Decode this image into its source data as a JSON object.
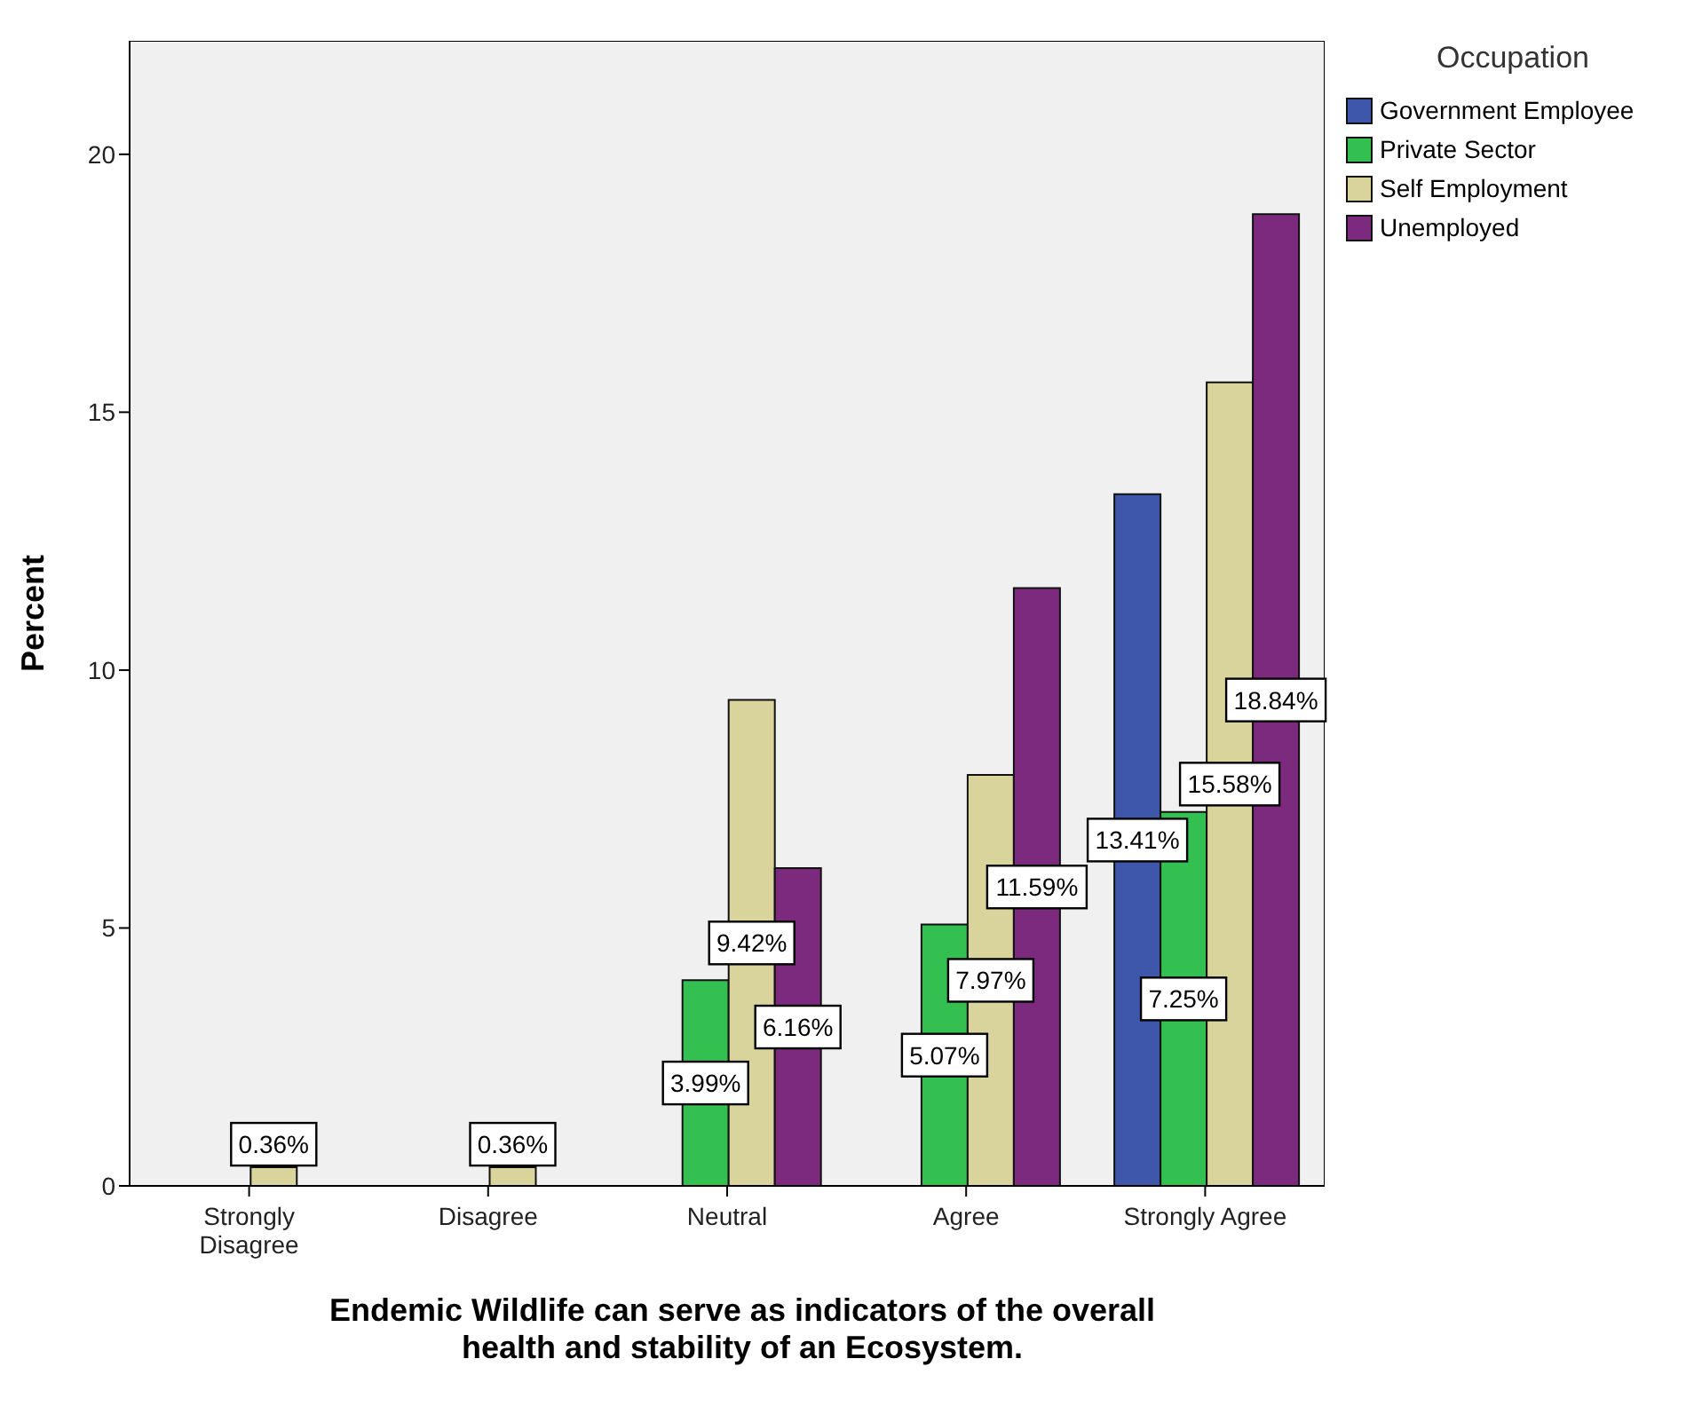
{
  "chart_data": {
    "type": "bar",
    "xlabel": "Endemic Wildlife can serve as indicators of the overall health and stability of an Ecosystem.",
    "ylabel": "Percent",
    "legend_title": "Occupation",
    "categories": [
      "Strongly Disagree",
      "Disagree",
      "Neutral",
      "Agree",
      "Strongly Agree"
    ],
    "series": [
      {
        "name": "Government Employee",
        "color": "#3f57ab",
        "values": [
          null,
          null,
          null,
          null,
          13.41
        ],
        "value_labels": [
          null,
          null,
          null,
          null,
          "13.41%"
        ]
      },
      {
        "name": "Private Sector",
        "color": "#34c050",
        "values": [
          null,
          null,
          3.99,
          5.07,
          7.25
        ],
        "value_labels": [
          null,
          null,
          "3.99%",
          "5.07%",
          "7.25%"
        ]
      },
      {
        "name": "Self Employment",
        "color": "#d9d39c",
        "values": [
          0.36,
          0.36,
          9.42,
          7.97,
          15.58
        ],
        "value_labels": [
          "0.36%",
          "0.36%",
          "9.42%",
          "7.97%",
          "15.58%"
        ]
      },
      {
        "name": "Unemployed",
        "color": "#7c2a7e",
        "values": [
          null,
          null,
          6.16,
          11.59,
          18.84
        ],
        "value_labels": [
          null,
          null,
          "6.16%",
          "11.59%",
          "18.84%"
        ]
      }
    ],
    "ylim": [
      0,
      22.2
    ],
    "yticks": [
      0,
      5,
      10,
      15,
      20
    ],
    "grid": false,
    "legend": "top right"
  }
}
